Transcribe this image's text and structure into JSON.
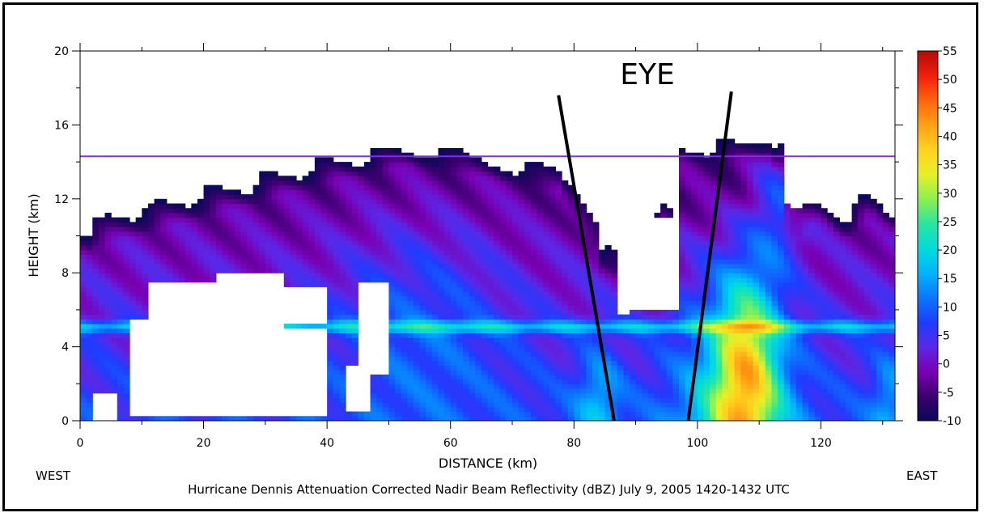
{
  "chart_data": {
    "type": "heatmap",
    "caption": "Hurricane Dennis Attenuation Corrected Nadir Beam Reflectivity (dBZ) July 9, 2005 1420-1432 UTC",
    "xlabel": "DISTANCE (km)",
    "ylabel": "HEIGHT (km)",
    "xlim": [
      0,
      132
    ],
    "ylim": [
      0,
      20
    ],
    "x_ticks": [
      "0",
      "20",
      "40",
      "60",
      "80",
      "100",
      "120"
    ],
    "y_ticks": [
      "0",
      "4",
      "8",
      "12",
      "16",
      "20"
    ],
    "west_label": "WEST",
    "east_label": "EAST",
    "annotation": "EYE",
    "eye_lines": [
      {
        "x0": 86.5,
        "y0": 0,
        "x1": 77.5,
        "y1": 17.6
      },
      {
        "x0": 98.5,
        "y0": 0,
        "x1": 105.5,
        "y1": 17.8
      }
    ],
    "colorbar": {
      "unit": "dBZ",
      "min": -10,
      "max": 55,
      "ticks": [
        "55",
        "50",
        "45",
        "40",
        "35",
        "30",
        "25",
        "20",
        "15",
        "10",
        "5",
        "0",
        "-5",
        "-10"
      ],
      "colors": [
        "#0a0a5a",
        "#3a006e",
        "#7a00b4",
        "#5a28e6",
        "#1e3cff",
        "#0a78ff",
        "#00b4ff",
        "#00dcdc",
        "#28e6a0",
        "#8cf050",
        "#e6f028",
        "#ffd21e",
        "#ffa014",
        "#ff640a",
        "#f01e0a",
        "#b40a0a"
      ]
    },
    "grid": false,
    "legend": "right colorbar"
  }
}
